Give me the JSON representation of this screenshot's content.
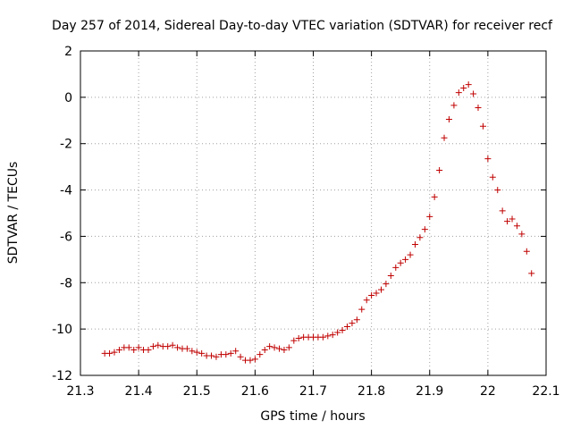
{
  "chart_data": {
    "type": "scatter",
    "title": "Day 257 of 2014, Sidereal Day-to-day VTEC variation (SDTVAR) for receiver recf",
    "xlabel": "GPS time / hours",
    "ylabel": "SDTVAR / TECUs",
    "xlim": [
      21.3,
      22.1
    ],
    "ylim": [
      -12,
      2
    ],
    "xticks": [
      21.3,
      21.4,
      21.5,
      21.6,
      21.7,
      21.8,
      21.9,
      22.0,
      22.1
    ],
    "xtick_labels": [
      "21.3",
      "21.4",
      "21.5",
      "21.6",
      "21.7",
      "21.8",
      "21.9",
      "22",
      "22.1"
    ],
    "yticks": [
      2,
      0,
      -2,
      -4,
      -6,
      -8,
      -10,
      -12
    ],
    "ytick_labels": [
      "2",
      "0",
      "-2",
      "-4",
      "-6",
      "-8",
      "-10",
      "-12"
    ],
    "grid": true,
    "marker": "+",
    "color": "#c00000",
    "series": [
      {
        "name": "SDTVAR",
        "x": [
          21.3417,
          21.35,
          21.3583,
          21.3667,
          21.375,
          21.3833,
          21.3917,
          21.4,
          21.4083,
          21.4167,
          21.425,
          21.4333,
          21.4417,
          21.45,
          21.4583,
          21.4667,
          21.475,
          21.4833,
          21.4917,
          21.5,
          21.5083,
          21.5167,
          21.525,
          21.5333,
          21.5417,
          21.55,
          21.5583,
          21.5667,
          21.575,
          21.5833,
          21.5917,
          21.6,
          21.6083,
          21.6167,
          21.625,
          21.6333,
          21.6417,
          21.65,
          21.6583,
          21.6667,
          21.675,
          21.6833,
          21.6917,
          21.7,
          21.7083,
          21.7167,
          21.725,
          21.7333,
          21.7417,
          21.75,
          21.7583,
          21.7667,
          21.775,
          21.7833,
          21.7917,
          21.8,
          21.8083,
          21.8167,
          21.825,
          21.8333,
          21.8417,
          21.85,
          21.8583,
          21.8667,
          21.875,
          21.8833,
          21.8917,
          21.9,
          21.9083,
          21.9167,
          21.925,
          21.9333,
          21.9417,
          21.95,
          21.9583,
          21.9667,
          21.975,
          21.9833,
          21.9917,
          22.0,
          22.0083,
          22.0167,
          22.025,
          22.0333,
          22.0417,
          22.05,
          22.0583,
          22.0667,
          22.075
        ],
        "y": [
          -11.05,
          -11.05,
          -11.0,
          -10.9,
          -10.8,
          -10.8,
          -10.9,
          -10.8,
          -10.9,
          -10.9,
          -10.75,
          -10.7,
          -10.75,
          -10.75,
          -10.7,
          -10.8,
          -10.85,
          -10.85,
          -10.95,
          -11.0,
          -11.05,
          -11.15,
          -11.15,
          -11.2,
          -11.1,
          -11.1,
          -11.05,
          -10.95,
          -11.2,
          -11.35,
          -11.35,
          -11.3,
          -11.1,
          -10.9,
          -10.75,
          -10.8,
          -10.85,
          -10.9,
          -10.8,
          -10.5,
          -10.4,
          -10.35,
          -10.35,
          -10.35,
          -10.35,
          -10.35,
          -10.3,
          -10.25,
          -10.15,
          -10.05,
          -9.9,
          -9.75,
          -9.6,
          -9.15,
          -8.75,
          -8.55,
          -8.45,
          -8.3,
          -8.05,
          -7.7,
          -7.35,
          -7.15,
          -7.0,
          -6.8,
          -6.35,
          -6.05,
          -5.7,
          -5.15,
          -4.3,
          -3.15,
          -1.75,
          -0.95,
          -0.35,
          0.2,
          0.4,
          0.55,
          0.15,
          -0.45,
          -1.25,
          -2.65,
          -3.45,
          -4.0,
          -4.9,
          -5.35,
          -5.25,
          -5.55,
          -5.9,
          -6.65,
          -7.6
        ]
      }
    ]
  }
}
